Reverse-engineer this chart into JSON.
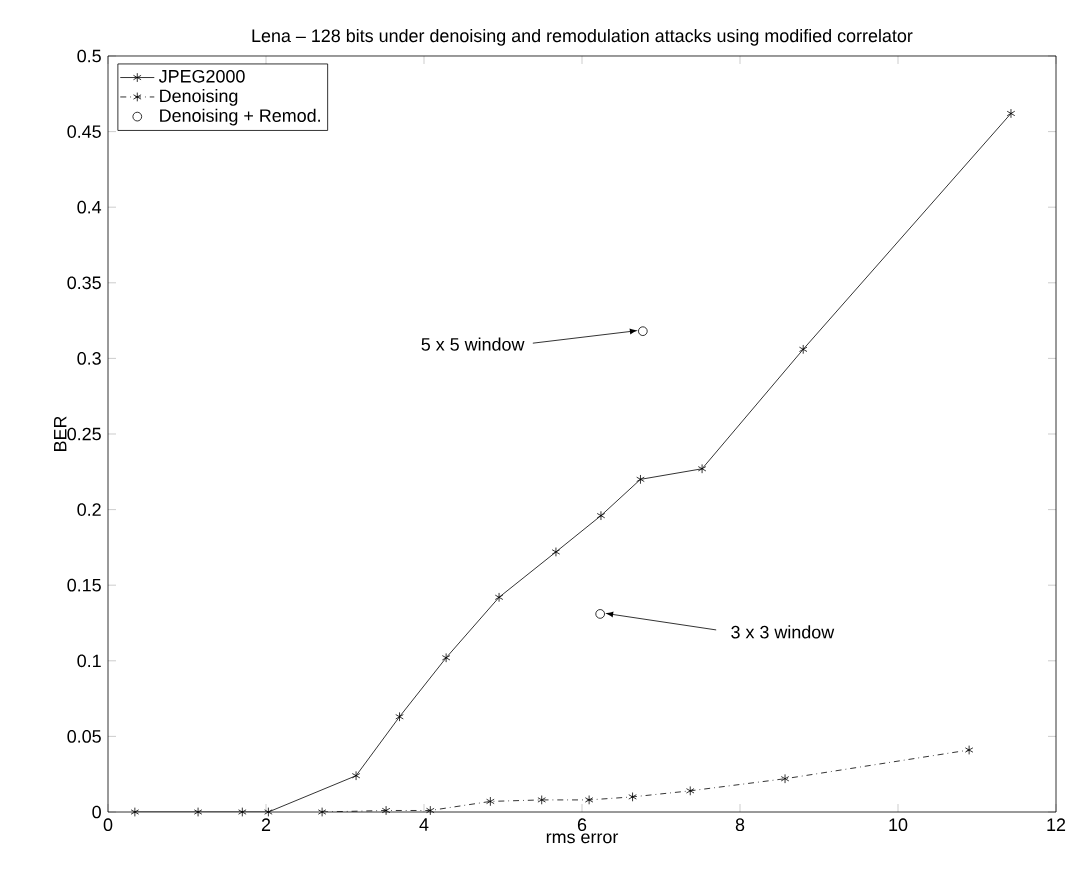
{
  "chart_data": {
    "type": "line",
    "title": "Lena – 128 bits under denoising and remodulation attacks using modified correlator",
    "xlabel": "rms error",
    "ylabel": "BER",
    "xlim": [
      0,
      12
    ],
    "xticks": [
      0,
      2,
      4,
      6,
      8,
      10,
      12
    ],
    "ylim": [
      0,
      0.5
    ],
    "yticks": [
      0,
      0.05,
      0.1,
      0.15,
      0.2,
      0.25,
      0.3,
      0.35,
      0.4,
      0.45,
      0.5
    ],
    "legend": "top left",
    "grid": false,
    "series": [
      {
        "name": "JPEG2000",
        "color": "#000000",
        "marker": "cross",
        "line_style": "solid",
        "x": [
          0.34,
          1.14,
          1.7,
          2.03,
          3.14,
          3.69,
          4.28,
          4.95,
          5.67,
          6.24,
          6.74,
          7.52,
          8.8,
          11.43
        ],
        "values": [
          0,
          0,
          0,
          0,
          0.024,
          0.063,
          0.102,
          0.142,
          0.172,
          0.196,
          0.22,
          0.227,
          0.306,
          0.462
        ]
      },
      {
        "name": "Denoising",
        "color": "#000000",
        "marker": "cross",
        "line_style": "dashdot",
        "x": [
          2.71,
          3.52,
          4.08,
          4.84,
          5.49,
          6.09,
          6.64,
          7.37,
          8.57,
          10.9
        ],
        "values": [
          0,
          0.001,
          0.001,
          0.007,
          0.008,
          0.008,
          0.01,
          0.014,
          0.022,
          0.041
        ]
      },
      {
        "name": "Denoising + Remod.",
        "type": "scatter",
        "color": "#000000",
        "marker": "circle",
        "x": [
          6.77,
          6.23
        ],
        "values": [
          0.318,
          0.131
        ]
      }
    ],
    "annotations": [
      {
        "text": "5 x 5 window",
        "x": 6.77,
        "y": 0.318
      },
      {
        "text": "3 x 3 window",
        "x": 6.23,
        "y": 0.131
      }
    ]
  }
}
